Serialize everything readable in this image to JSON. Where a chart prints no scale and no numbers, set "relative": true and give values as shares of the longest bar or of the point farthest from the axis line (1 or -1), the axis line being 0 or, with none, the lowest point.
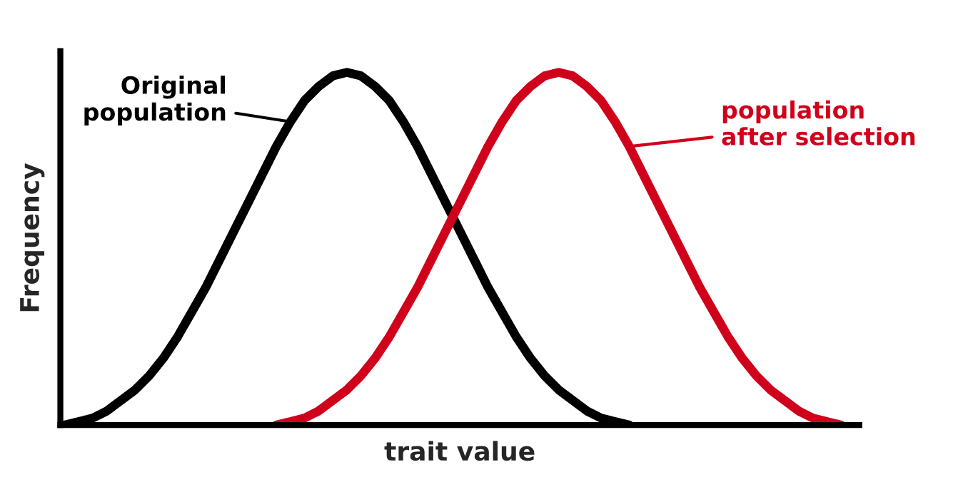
{
  "chart_data": {
    "type": "line",
    "relative": true,
    "xlabel": "trait value",
    "ylabel": "Frequency",
    "marker": "none",
    "line_style": "solid",
    "categories": [
      null,
      null,
      null,
      null,
      null,
      null,
      null,
      null,
      null,
      null,
      null,
      null,
      null,
      null,
      null,
      null,
      null,
      null,
      null,
      null,
      null,
      null,
      null,
      null,
      null,
      null,
      null,
      null,
      null,
      null,
      null,
      null,
      null,
      null,
      null,
      null,
      null,
      null,
      null,
      null,
      null,
      null,
      null,
      null,
      null,
      null,
      null,
      null,
      null,
      null,
      null,
      null,
      null,
      null,
      null,
      null,
      null
    ],
    "series": [
      {
        "name": "Original\npopulation",
        "color": "#000000",
        "values": [
          0.0,
          0.01,
          0.02,
          0.04,
          0.07,
          0.1,
          0.14,
          0.19,
          0.25,
          0.32,
          0.39,
          0.47,
          0.55,
          0.63,
          0.71,
          0.79,
          0.86,
          0.92,
          0.96,
          0.99,
          1.0,
          0.99,
          0.96,
          0.92,
          0.86,
          0.79,
          0.71,
          0.63,
          0.55,
          0.47,
          0.39,
          0.32,
          0.25,
          0.19,
          0.14,
          0.1,
          0.07,
          0.04,
          0.02,
          0.01,
          0.0,
          null,
          null,
          null,
          null,
          null,
          null,
          null,
          null,
          null,
          null,
          null,
          null,
          null,
          null,
          null,
          null
        ]
      },
      {
        "name": "population\nafter selection",
        "color": "#d0021b",
        "values": [
          null,
          null,
          null,
          null,
          null,
          null,
          null,
          null,
          null,
          null,
          null,
          null,
          null,
          null,
          null,
          0.0,
          0.01,
          0.02,
          0.04,
          0.07,
          0.1,
          0.14,
          0.19,
          0.25,
          0.32,
          0.39,
          0.47,
          0.55,
          0.63,
          0.71,
          0.79,
          0.86,
          0.92,
          0.96,
          0.99,
          1.0,
          0.99,
          0.96,
          0.92,
          0.86,
          0.79,
          0.71,
          0.63,
          0.55,
          0.47,
          0.39,
          0.32,
          0.25,
          0.19,
          0.14,
          0.1,
          0.07,
          0.04,
          0.02,
          0.01,
          0.0,
          null
        ]
      }
    ]
  }
}
